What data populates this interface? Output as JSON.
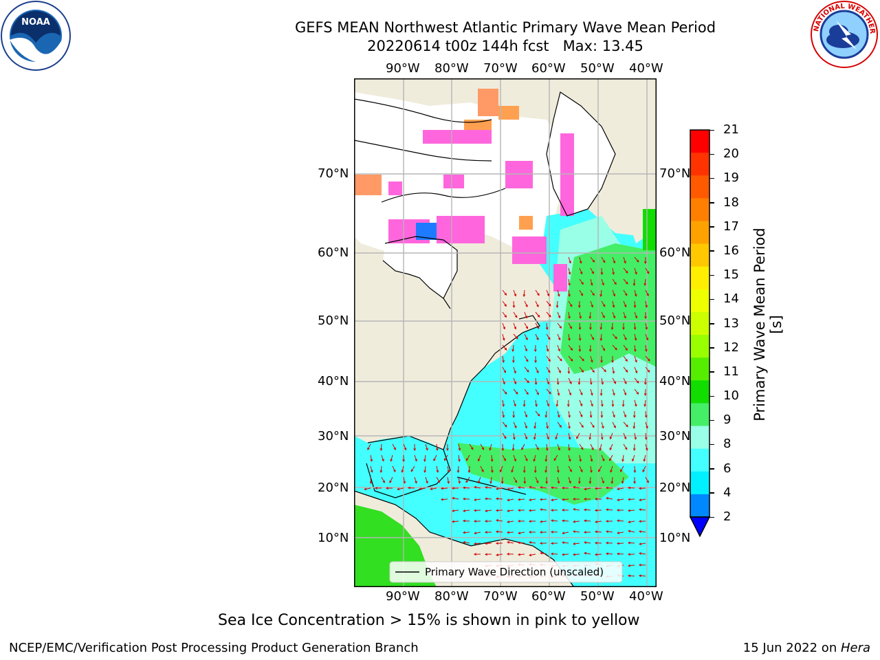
{
  "title": {
    "line1": "GEFS MEAN Northwest Atlantic Primary Wave Mean Period",
    "line2": "20220614 t00z 144h fcst   Max: 13.45"
  },
  "logos": {
    "left": {
      "text": "NOAA",
      "icon": "noaa-logo"
    },
    "right": {
      "text": "NATIONAL WEATHER SERVICE",
      "icon": "nws-logo"
    }
  },
  "map": {
    "lon_labels": [
      "90°W",
      "80°W",
      "70°W",
      "60°W",
      "50°W",
      "40°W"
    ],
    "lat_labels": [
      "70°N",
      "60°N",
      "50°N",
      "40°N",
      "30°N",
      "20°N",
      "10°N"
    ],
    "legend_label": "Primary Wave Direction (unscaled)"
  },
  "colorbar": {
    "label": "Primary Wave Mean Period [s]",
    "ticks": [
      "21",
      "20",
      "19",
      "18",
      "17",
      "16",
      "15",
      "14",
      "13",
      "12",
      "11",
      "10",
      "9",
      "8",
      "6",
      "4",
      "2"
    ],
    "colors": [
      "#ff0000",
      "#ff3300",
      "#ff5a00",
      "#ff7f00",
      "#ffa200",
      "#ffc800",
      "#ffee00",
      "#eeff00",
      "#ccff00",
      "#99ff00",
      "#55ee00",
      "#11dd00",
      "#44ee66",
      "#99ffe6",
      "#44ffff",
      "#00f0ff",
      "#0088ff"
    ],
    "extend_color": "#0000ff"
  },
  "caption": "Sea Ice Concentration > 15% is shown in pink to yellow",
  "footer": {
    "left": "NCEP/EMC/Verification Post Processing Product Generation Branch",
    "right_prefix": "15 Jun 2022 on ",
    "right_host": "Hera"
  }
}
